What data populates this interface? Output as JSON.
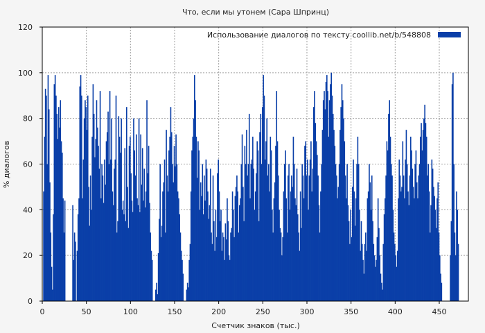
{
  "chart_data": {
    "type": "bar",
    "title": "Что, если мы утонем (Сара Шпринц)",
    "xlabel": "Счетчик знаков (тыс.)",
    "ylabel": "% диалогов",
    "xlim": [
      0,
      483
    ],
    "ylim": [
      0,
      120
    ],
    "x_ticks": [
      0,
      50,
      100,
      150,
      200,
      250,
      300,
      350,
      400,
      450
    ],
    "y_ticks": [
      0,
      20,
      40,
      60,
      80,
      100,
      120
    ],
    "grid": true,
    "legend_position": "top-right",
    "series": [
      {
        "name": "Использование диалогов по тексту  coollib.net/b/548808",
        "color": "#0a3fa8",
        "bin_width": 1,
        "values": [
          0,
          48,
          72,
          93,
          90,
          60,
          99,
          84,
          52,
          30,
          15,
          5,
          38,
          95,
          99,
          90,
          82,
          71,
          85,
          76,
          88,
          70,
          65,
          45,
          30,
          44,
          0,
          0,
          0,
          0,
          0,
          0,
          0,
          0,
          42,
          18,
          30,
          26,
          0,
          22,
          38,
          45,
          94,
          99,
          90,
          45,
          62,
          80,
          88,
          85,
          75,
          90,
          50,
          33,
          55,
          40,
          72,
          95,
          82,
          63,
          71,
          88,
          76,
          68,
          58,
          92,
          45,
          60,
          55,
          43,
          62,
          51,
          70,
          74,
          83,
          60,
          92,
          62,
          80,
          48,
          42,
          58,
          62,
          90,
          30,
          35,
          81,
          72,
          65,
          80,
          40,
          44,
          38,
          67,
          35,
          85,
          50,
          32,
          68,
          72,
          56,
          44,
          39,
          80,
          66,
          55,
          73,
          45,
          42,
          80,
          39,
          73,
          51,
          67,
          44,
          58,
          41,
          48,
          88,
          56,
          68,
          43,
          30,
          22,
          18,
          0,
          0,
          0,
          5,
          8,
          3,
          21,
          36,
          60,
          28,
          33,
          48,
          52,
          62,
          30,
          75,
          55,
          48,
          66,
          72,
          85,
          74,
          60,
          52,
          68,
          59,
          73,
          60,
          48,
          45,
          38,
          30,
          22,
          18,
          12,
          0,
          0,
          0,
          5,
          8,
          6,
          18,
          25,
          48,
          66,
          72,
          80,
          99,
          88,
          72,
          54,
          70,
          66,
          40,
          52,
          46,
          60,
          38,
          55,
          44,
          62,
          58,
          48,
          36,
          42,
          58,
          30,
          25,
          55,
          35,
          22,
          40,
          28,
          56,
          62,
          48,
          35,
          40,
          22,
          30,
          28,
          18,
          34,
          27,
          45,
          35,
          20,
          18,
          30,
          32,
          48,
          40,
          28,
          46,
          50,
          55,
          48,
          30,
          42,
          45,
          60,
          73,
          50,
          35,
          68,
          60,
          75,
          55,
          60,
          82,
          45,
          60,
          62,
          72,
          58,
          40,
          48,
          56,
          70,
          66,
          35,
          74,
          82,
          60,
          85,
          99,
          90,
          62,
          70,
          80,
          55,
          60,
          48,
          72,
          66,
          40,
          30,
          45,
          52,
          68,
          92,
          70,
          55,
          40,
          32,
          30,
          20,
          28,
          48,
          60,
          66,
          45,
          30,
          55,
          60,
          40,
          48,
          55,
          50,
          72,
          60,
          45,
          42,
          58,
          38,
          30,
          22,
          48,
          32,
          60,
          55,
          45,
          68,
          70,
          55,
          62,
          40,
          55,
          62,
          70,
          48,
          58,
          85,
          92,
          78,
          70,
          64,
          55,
          42,
          30,
          48,
          60,
          75,
          88,
          92,
          84,
          96,
          99,
          92,
          72,
          88,
          95,
          100,
          90,
          82,
          75,
          68,
          60,
          55,
          45,
          50,
          60,
          75,
          85,
          95,
          88,
          80,
          70,
          55,
          45,
          60,
          42,
          35,
          25,
          40,
          28,
          50,
          62,
          48,
          33,
          45,
          60,
          72,
          60,
          40,
          22,
          35,
          25,
          18,
          12,
          25,
          30,
          22,
          45,
          48,
          60,
          52,
          40,
          55,
          35,
          25,
          20,
          15,
          18,
          28,
          45,
          32,
          20,
          12,
          8,
          5,
          25,
          38,
          45,
          55,
          70,
          66,
          82,
          88,
          72,
          60,
          55,
          40,
          30,
          25,
          20,
          15,
          22,
          45,
          62,
          55,
          48,
          50,
          70,
          55,
          45,
          62,
          75,
          60,
          48,
          42,
          55,
          72,
          66,
          58,
          50,
          45,
          60,
          66,
          52,
          45,
          55,
          60,
          72,
          78,
          66,
          75,
          80,
          86,
          78,
          72,
          55,
          60,
          48,
          30,
          42,
          62,
          58,
          50,
          46,
          40,
          32,
          45,
          52,
          30,
          20,
          12,
          8,
          0,
          0,
          0,
          0,
          0,
          0,
          0,
          0,
          0,
          20,
          35,
          95,
          100,
          60,
          30,
          20,
          48,
          40,
          25
        ]
      }
    ]
  }
}
